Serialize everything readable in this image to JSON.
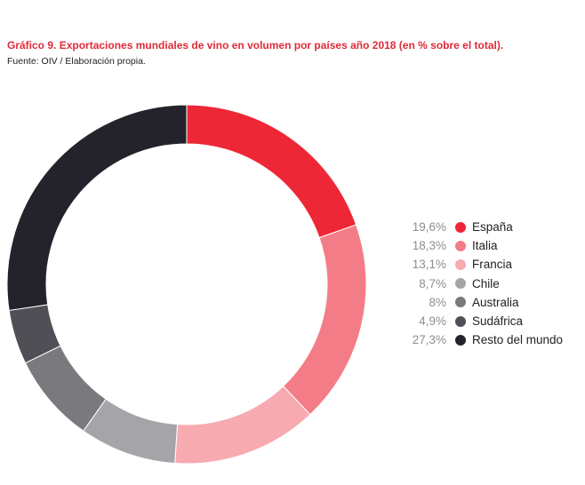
{
  "title": "Gráfico 9. Exportaciones mundiales  de vino en  volumen por países año 2018 (en % sobre el total).",
  "source": "Fuente: OIV / Elaboración propia.",
  "chart_data": {
    "type": "pie",
    "donut": true,
    "title": "Gráfico 9. Exportaciones mundiales  de vino en  volumen por países año 2018 (en % sobre el total).",
    "legend_position": "right",
    "categories": [
      "España",
      "Italia",
      "Francia",
      "Chile",
      "Australia",
      "Sudáfrica",
      "Resto del mundo"
    ],
    "values": [
      19.6,
      18.3,
      13.1,
      8.7,
      8,
      4.9,
      27.3
    ],
    "value_labels": [
      "19,6%",
      "18,3%",
      "13,1%",
      "8,7%",
      "8%",
      "4,9%",
      "27,3%"
    ],
    "colors": [
      "#ee2737",
      "#f47c86",
      "#f7aab0",
      "#a5a5a9",
      "#7a7a7e",
      "#4f4f55",
      "#24232b"
    ]
  }
}
